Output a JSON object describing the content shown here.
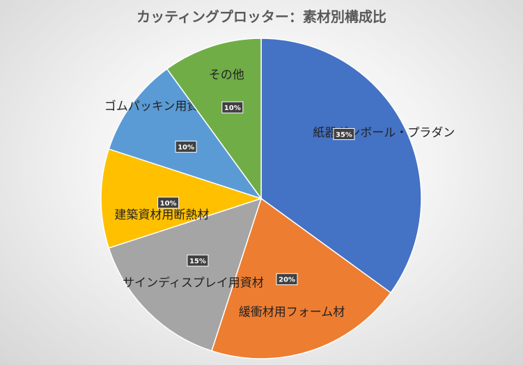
{
  "chart_data": {
    "type": "pie",
    "title": "カッティングプロッター：素材別構成比",
    "slices": [
      {
        "name": "紙器ダンボール・プラダン",
        "value": 35,
        "label": "35%",
        "color": "#4472C4"
      },
      {
        "name": "緩衝材用フォーム材",
        "value": 20,
        "label": "20%",
        "color": "#ED7D31"
      },
      {
        "name": "サインディスプレイ用資材",
        "value": 15,
        "label": "15%",
        "color": "#A5A5A5"
      },
      {
        "name": "建築資材用断熱材",
        "value": 10,
        "label": "10%",
        "color": "#FFC000"
      },
      {
        "name": "ゴムパッキン用資材",
        "value": 10,
        "label": "10%",
        "color": "#5B9BD5"
      },
      {
        "name": "その他",
        "value": 10,
        "label": "10%",
        "color": "#70AD47"
      }
    ],
    "start_angle": "12 o'clock",
    "direction": "clockwise"
  }
}
